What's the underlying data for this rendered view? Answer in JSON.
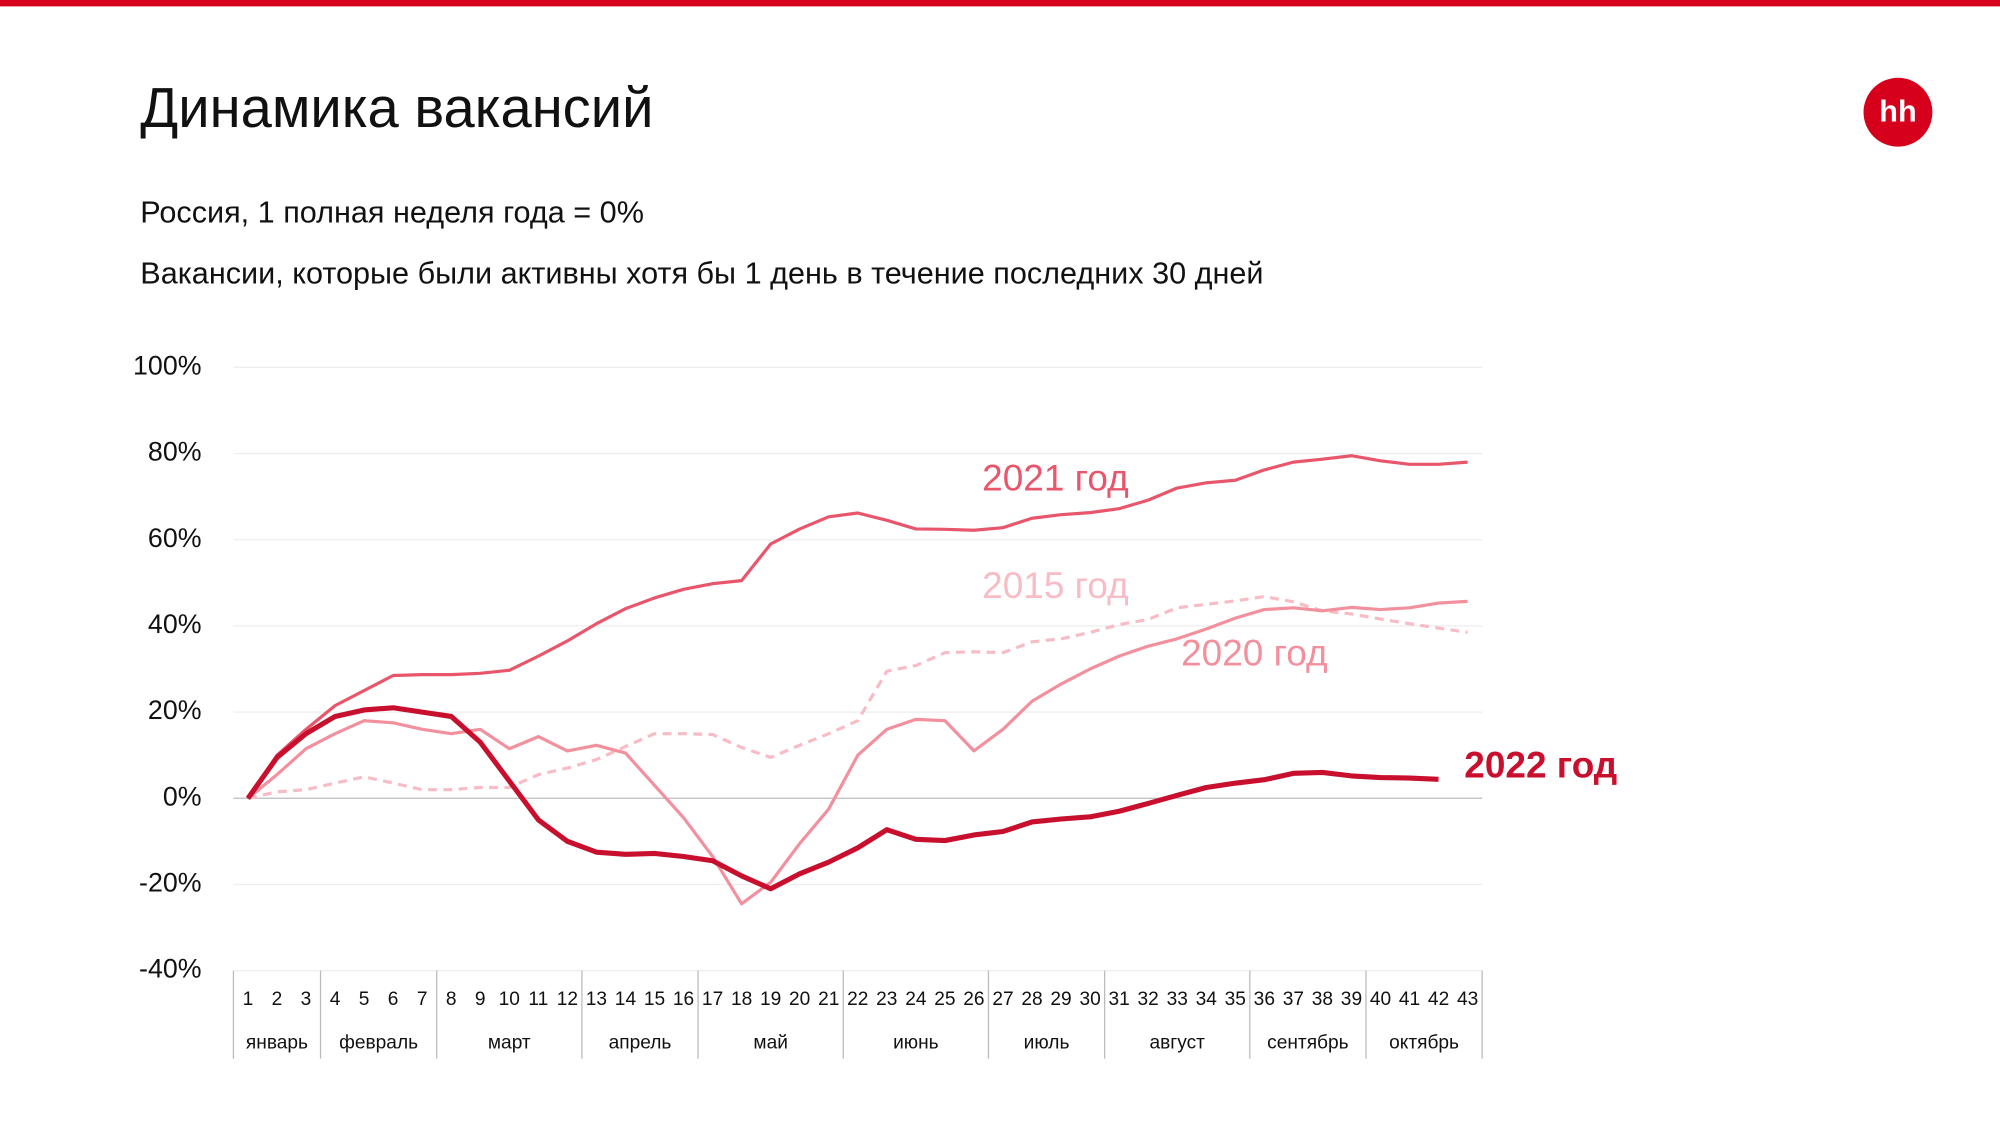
{
  "chart_data": {
    "type": "line",
    "title": "Динамика вакансий",
    "subtitles": [
      "Россия, 1 полная неделя года = 0%",
      "Вакансии, которые были активны хотя бы 1 день в течение последних 30 дней"
    ],
    "logo": "hh",
    "categories": [
      "1",
      "2",
      "3",
      "4",
      "5",
      "6",
      "7",
      "8",
      "9",
      "10",
      "11",
      "12",
      "13",
      "14",
      "15",
      "16",
      "17",
      "18",
      "19",
      "20",
      "21",
      "22",
      "23",
      "24",
      "25",
      "26",
      "27",
      "28",
      "29",
      "30",
      "31",
      "32",
      "33",
      "34",
      "35",
      "36",
      "37",
      "38",
      "39",
      "40",
      "41",
      "42",
      "43"
    ],
    "months": [
      {
        "label": "январь",
        "first": "1",
        "last": "3"
      },
      {
        "label": "февраль",
        "first": "4",
        "last": "7"
      },
      {
        "label": "март",
        "first": "8",
        "last": "12"
      },
      {
        "label": "апрель",
        "first": "13",
        "last": "16"
      },
      {
        "label": "май",
        "first": "17",
        "last": "21"
      },
      {
        "label": "июнь",
        "first": "22",
        "last": "26"
      },
      {
        "label": "июль",
        "first": "27",
        "last": "30"
      },
      {
        "label": "август",
        "first": "31",
        "last": "35"
      },
      {
        "label": "сентябрь",
        "first": "36",
        "last": "39"
      },
      {
        "label": "октябрь",
        "first": "40",
        "last": "43"
      }
    ],
    "ylim": [
      -40,
      100
    ],
    "yticks": [
      {
        "value": -40,
        "label": "-40%"
      },
      {
        "value": -20,
        "label": "-20%"
      },
      {
        "value": 0,
        "label": "0%"
      },
      {
        "value": 20,
        "label": "20%"
      },
      {
        "value": 40,
        "label": "40%"
      },
      {
        "value": 60,
        "label": "60%"
      },
      {
        "value": 80,
        "label": "80%"
      },
      {
        "value": 100,
        "label": "100%"
      }
    ],
    "grid": true,
    "series": [
      {
        "name": "2015 год",
        "color": "#f7bcc5",
        "dashed": true,
        "values": [
          0,
          1.5,
          2,
          3.5,
          5,
          3.5,
          2,
          2,
          2.5,
          2.5,
          5.5,
          7,
          9,
          12,
          15,
          15,
          14.8,
          11.8,
          9.5,
          12.3,
          15,
          18,
          29.5,
          30.8,
          33.8,
          34,
          33.8,
          36.3,
          37,
          38.5,
          40.3,
          41.5,
          44.2,
          45,
          45.8,
          46.8,
          45.6,
          43.5,
          42.8,
          41.6,
          40.5,
          39.5,
          38.5
        ]
      },
      {
        "name": "2020 год",
        "color": "#f2909d",
        "values": [
          0,
          5.5,
          11.5,
          15,
          18,
          17.5,
          16,
          15,
          16,
          11.5,
          14.3,
          11,
          12.3,
          10.5,
          3,
          -4.5,
          -13.5,
          -24.5,
          -19.5,
          -10.5,
          -2.5,
          10,
          16,
          18.3,
          18,
          11,
          16,
          22.5,
          26.5,
          30,
          33,
          35.3,
          37,
          39.3,
          41.8,
          43.8,
          44.2,
          43.5,
          44.3,
          43.8,
          44.2,
          45.3,
          45.7
        ]
      },
      {
        "name": "2021 год",
        "color": "#e8566c",
        "values": [
          0,
          10,
          16,
          21.5,
          25,
          28.5,
          28.7,
          28.7,
          29,
          29.7,
          33,
          36.5,
          40.5,
          44,
          46.5,
          48.5,
          49.8,
          50.5,
          59,
          62.5,
          65.3,
          66.2,
          64.5,
          62.5,
          62.4,
          62.2,
          62.8,
          65,
          65.8,
          66.3,
          67.2,
          69.2,
          72,
          73.2,
          73.8,
          76.2,
          78,
          78.7,
          79.5,
          78.3,
          77.5,
          77.5,
          78
        ]
      },
      {
        "name": "2022 год",
        "color": "#c8102e",
        "bold": true,
        "values": [
          0,
          9.5,
          15,
          19,
          20.5,
          21,
          20,
          19,
          13,
          4,
          -5,
          -10,
          -12.5,
          -13,
          -12.8,
          -13.5,
          -14.5,
          -18,
          -21,
          -17.5,
          -14.8,
          -11.5,
          -7.3,
          -9.5,
          -9.8,
          -8.5,
          -7.7,
          -5.5,
          -4.8,
          -4.3,
          -3,
          -1.2,
          0.7,
          2.5,
          3.5,
          4.3,
          5.8,
          6,
          5.2,
          4.8,
          4.7,
          4.4,
          null
        ]
      }
    ]
  }
}
